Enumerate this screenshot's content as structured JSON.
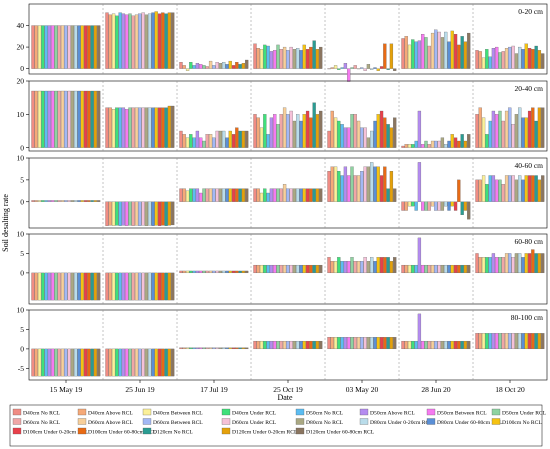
{
  "chart_data": {
    "type": "bar",
    "xlabel": "Date",
    "ylabel": "Soil desalting rate",
    "categories": [
      "15 May 19",
      "25 Jun 19",
      "17 Jul 19",
      "25 Oct 19",
      "03 May 20",
      "28 Jun 20",
      "18 Oct 20"
    ],
    "legend_position": "bottom",
    "series": [
      {
        "name": "D40cm No RCL",
        "color": "#f08c84"
      },
      {
        "name": "D40cm Above RCL",
        "color": "#f5a978"
      },
      {
        "name": "D40cm Between RCL",
        "color": "#fbf099"
      },
      {
        "name": "D40cm Under RCL",
        "color": "#3fe07a"
      },
      {
        "name": "D50cm No RCL",
        "color": "#5cbdf2"
      },
      {
        "name": "D50cm Above RCL",
        "color": "#b48cf0"
      },
      {
        "name": "D50cm Between RCL",
        "color": "#f57af0"
      },
      {
        "name": "D50cm Under RCL",
        "color": "#8ed3a1"
      },
      {
        "name": "D60cm No RCL",
        "color": "#f0a6a6"
      },
      {
        "name": "D60cm Above RCL",
        "color": "#f7cf9a"
      },
      {
        "name": "D60cm Between RCL",
        "color": "#a3b8f5"
      },
      {
        "name": "D60cm Under RCL",
        "color": "#f5c1d8"
      },
      {
        "name": "D80cm No RCL",
        "color": "#aaa883"
      },
      {
        "name": "D80cm Under 0-20cm RCL",
        "color": "#b9dcea"
      },
      {
        "name": "D80cm Under 60-80cm RCL",
        "color": "#5a8fd6"
      },
      {
        "name": "D100cm No RCL",
        "color": "#f5c211"
      },
      {
        "name": "D100cm Under 0-20cm RCL",
        "color": "#e8404a"
      },
      {
        "name": "D100cm Under 60-80cm RCL",
        "color": "#e86a14"
      },
      {
        "name": "D120cm No RCL",
        "color": "#2a9c92"
      },
      {
        "name": "D120cm Under 0-20cm RCL",
        "color": "#e5a10a"
      },
      {
        "name": "D120cm Under 60-80cm RCL",
        "color": "#8a7560"
      }
    ],
    "panels": [
      {
        "label": "0-20 cm",
        "ylim": [
          -5,
          60
        ],
        "yticks": [
          0,
          20,
          40
        ],
        "values": [
          [
            40,
            40,
            40,
            40,
            40,
            40,
            40,
            40,
            40,
            40,
            40,
            40,
            40,
            40,
            40,
            40,
            40,
            40,
            40,
            40,
            40
          ],
          [
            52,
            50,
            51,
            49,
            52,
            51,
            50,
            51,
            49,
            50,
            51,
            52,
            50,
            51,
            52,
            53,
            51,
            52,
            51,
            52,
            52
          ],
          [
            6,
            3,
            -2,
            6,
            3,
            5,
            4,
            3,
            2,
            7,
            3,
            6,
            5,
            6,
            4,
            7,
            3,
            6,
            4,
            5,
            8
          ],
          [
            23,
            19,
            18,
            22,
            21,
            16,
            17,
            22,
            18,
            20,
            17,
            20,
            18,
            19,
            17,
            22,
            18,
            20,
            26,
            18,
            20
          ],
          [
            0,
            1,
            3,
            -1,
            1,
            5,
            -12,
            1,
            3,
            0,
            1,
            -2,
            4,
            -1,
            1,
            -2,
            2,
            23,
            -1,
            23,
            -2
          ],
          [
            28,
            30,
            22,
            27,
            25,
            26,
            32,
            29,
            21,
            33,
            36,
            34,
            29,
            34,
            25,
            35,
            32,
            22,
            30,
            25,
            33
          ],
          [
            17,
            16,
            10,
            18,
            11,
            19,
            20,
            15,
            16,
            19,
            20,
            21,
            14,
            20,
            18,
            23,
            19,
            18,
            21,
            17,
            14
          ]
        ]
      },
      {
        "label": "20-40 cm",
        "ylim": [
          -1,
          20
        ],
        "yticks": [
          0,
          10,
          20
        ],
        "values": [
          [
            17,
            17,
            17,
            17,
            17,
            17,
            17,
            17,
            17,
            17,
            17,
            17,
            17,
            17,
            17,
            17,
            17,
            17,
            17,
            17,
            17
          ],
          [
            12,
            12,
            11.5,
            12,
            12,
            12,
            11.5,
            12,
            12,
            12,
            12,
            12,
            12,
            12,
            12,
            12,
            12,
            12,
            12,
            12.5,
            12.5
          ],
          [
            5,
            4,
            3,
            4,
            3,
            5,
            3,
            2,
            4,
            4,
            3,
            5,
            5,
            5,
            3,
            5,
            4,
            6,
            5,
            5,
            5
          ],
          [
            10,
            9,
            6,
            10,
            4,
            9,
            10,
            7,
            10,
            12,
            10,
            11,
            8,
            10,
            8,
            10,
            11,
            9,
            13.5,
            10,
            11
          ],
          [
            5,
            11,
            9,
            8,
            7,
            6,
            6,
            10,
            10,
            8,
            6,
            6,
            3,
            5,
            8,
            10,
            11,
            9,
            7,
            6,
            9
          ],
          [
            0.5,
            1,
            1,
            1,
            2,
            11,
            1,
            2,
            1,
            2,
            2,
            2,
            3,
            1,
            2,
            4,
            3,
            2,
            4,
            2,
            4
          ],
          [
            10,
            12,
            9,
            4,
            8,
            11,
            10,
            11,
            8,
            11,
            12,
            7,
            10,
            12,
            9,
            9,
            11,
            12,
            8,
            12,
            12
          ]
        ]
      },
      {
        "label": "40-60 cm",
        "ylim": [
          -6,
          10
        ],
        "yticks": [
          0,
          5,
          10
        ],
        "values": [
          [
            0.3,
            0.3,
            0.3,
            0.3,
            0.3,
            0.3,
            0.3,
            0.3,
            0.3,
            0.3,
            0.3,
            0.3,
            0.3,
            0.3,
            0.3,
            0.3,
            0.3,
            0.3,
            0.3,
            0.3,
            0.3
          ],
          [
            -5.5,
            -5.4,
            -5.5,
            -5.4,
            -5.5,
            -5.4,
            -5.5,
            -5.4,
            -5.5,
            -5.4,
            -5.5,
            -5.4,
            -5.5,
            -5.4,
            -5.5,
            -5.4,
            -5.5,
            -5.4,
            -5.5,
            -5.4,
            -5.3
          ],
          [
            3,
            3,
            2.5,
            3,
            3,
            3,
            2,
            3,
            3,
            3,
            3,
            3,
            3,
            3,
            3,
            3,
            3,
            3,
            3,
            3,
            3
          ],
          [
            3,
            3,
            2,
            3,
            2,
            3,
            3,
            3,
            3,
            4,
            3,
            3,
            3,
            3,
            3,
            3,
            3,
            3,
            3,
            3,
            3
          ],
          [
            7,
            8,
            8,
            7,
            6,
            8,
            6,
            8,
            6,
            6,
            7,
            8,
            8,
            9,
            8,
            8,
            6,
            8,
            3,
            7,
            3
          ],
          [
            -2,
            -2,
            -1,
            -1,
            -2,
            9,
            -2,
            -2,
            -2,
            -1,
            -2,
            -2,
            -2,
            -1,
            -2,
            -1,
            -2,
            5,
            -3,
            -2,
            -4
          ],
          [
            5,
            5,
            6,
            4,
            6,
            6,
            5,
            5,
            4,
            6,
            6,
            6,
            5,
            6,
            5,
            6,
            6,
            6,
            6,
            5,
            6
          ]
        ]
      },
      {
        "label": "60-80 cm",
        "ylim": [
          -8,
          10
        ],
        "yticks": [
          0,
          5,
          10
        ],
        "values": [
          [
            -7,
            -7,
            -7,
            -7,
            -7,
            -7,
            -7,
            -7,
            -7,
            -7,
            -7,
            -7,
            -7,
            -7,
            -7,
            -7,
            -7,
            -7,
            -7,
            -7,
            -7
          ],
          [
            -7,
            -7,
            -7,
            -7,
            -7,
            -7,
            -7,
            -7,
            -7,
            -7,
            -7,
            -7,
            -7,
            -7,
            -7,
            -7,
            -7,
            -7,
            -7,
            -7,
            -7
          ],
          [
            0.5,
            0.5,
            0.5,
            0.5,
            0.5,
            0.5,
            0.5,
            0.5,
            0.5,
            0.5,
            0.5,
            0.5,
            0.5,
            0.5,
            0.5,
            0.5,
            0.5,
            0.5,
            0.5,
            0.5,
            0.5
          ],
          [
            2,
            2,
            2,
            2,
            2,
            2,
            2,
            2,
            2,
            2,
            2,
            2,
            2,
            2,
            2,
            2,
            2,
            2,
            2,
            2,
            2
          ],
          [
            4,
            3,
            3,
            4,
            3,
            3,
            3,
            4,
            3,
            3,
            3,
            4,
            3,
            4,
            3,
            4,
            4,
            4,
            4,
            3,
            4
          ],
          [
            2,
            2,
            2,
            2,
            2,
            9,
            2,
            2,
            2,
            2,
            2,
            2,
            2,
            2,
            2,
            2,
            2,
            2,
            2,
            2,
            2
          ],
          [
            5,
            4,
            4,
            4,
            4,
            5,
            4,
            4,
            4,
            5,
            5,
            4,
            5,
            5,
            4,
            5,
            5,
            6,
            5,
            5,
            5
          ]
        ]
      },
      {
        "label": "80-100 cm",
        "ylim": [
          -8,
          10
        ],
        "yticks": [
          -5,
          0,
          5,
          10
        ],
        "values": [
          [
            -7,
            -7,
            -7,
            -7,
            -7,
            -7,
            -7,
            -7,
            -7,
            -7,
            -7,
            -7,
            -7,
            -7,
            -7,
            -7,
            -7,
            -7,
            -7,
            -7,
            -7
          ],
          [
            -7,
            -7,
            -7,
            -7,
            -7,
            -7,
            -7,
            -7,
            -7,
            -7,
            -7,
            -7,
            -7,
            -7,
            -7,
            -7,
            -7,
            -7,
            -7,
            -7,
            -7
          ],
          [
            0.3,
            0.3,
            0.3,
            0.3,
            0.3,
            0.3,
            0.3,
            0.3,
            0.3,
            0.3,
            0.3,
            0.3,
            0.3,
            0.3,
            0.3,
            0.3,
            0.3,
            0.3,
            0.3,
            0.3,
            0.3
          ],
          [
            2,
            2,
            2,
            2,
            2,
            2,
            2,
            2,
            2,
            2,
            2,
            2,
            2,
            2,
            2,
            2,
            2,
            2,
            2,
            2,
            2
          ],
          [
            3,
            3,
            3,
            3,
            3,
            3,
            3,
            3,
            3,
            3,
            3,
            3,
            3,
            3,
            3,
            3,
            3,
            3,
            3,
            3,
            3
          ],
          [
            2,
            2,
            2,
            2,
            2,
            9,
            2,
            2,
            2,
            2,
            2,
            2,
            2,
            2,
            2,
            2,
            2,
            2,
            2,
            2,
            2
          ],
          [
            4,
            4,
            4,
            4,
            4,
            4,
            4,
            4,
            4,
            4,
            4,
            4,
            4,
            4,
            4,
            4,
            4,
            4,
            4,
            4,
            4
          ]
        ]
      }
    ]
  }
}
